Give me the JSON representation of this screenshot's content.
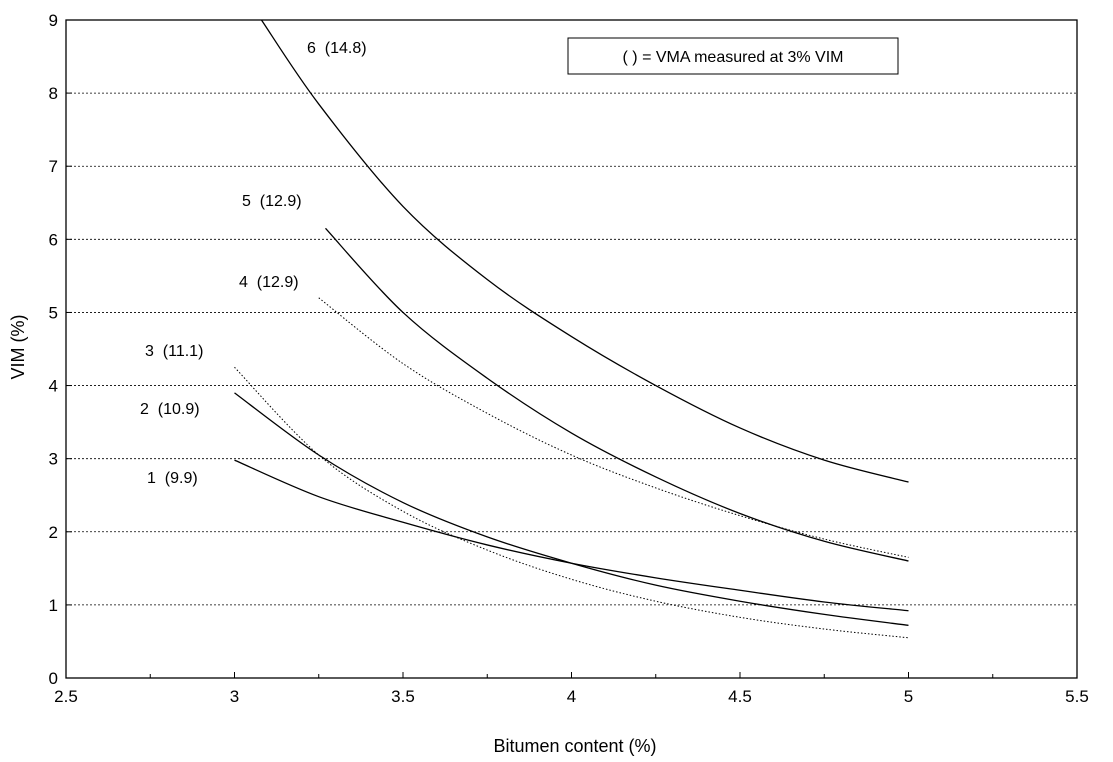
{
  "chart_data": {
    "type": "line",
    "xlabel": "Bitumen content (%)",
    "ylabel": "VIM (%)",
    "xlim": [
      2.5,
      5.5
    ],
    "ylim": [
      0,
      9
    ],
    "xticks": [
      "2.5",
      "3",
      "3.5",
      "4",
      "4.5",
      "5",
      "5.5"
    ],
    "yticks": [
      "0",
      "1",
      "2",
      "3",
      "4",
      "5",
      "6",
      "7",
      "8",
      "9"
    ],
    "grid": "horizontal dashed",
    "annotation": "( ) = VMA measured at 3% VIM",
    "series": [
      {
        "name": "1",
        "label": "1  (9.9)",
        "style": "solid",
        "x": [
          3.0,
          3.25,
          3.5,
          3.75,
          4.0,
          4.25,
          4.5,
          4.75,
          5.0
        ],
        "y": [
          2.98,
          2.48,
          2.13,
          1.82,
          1.57,
          1.37,
          1.2,
          1.04,
          0.92
        ]
      },
      {
        "name": "2",
        "label": "2  (10.9)",
        "style": "solid",
        "x": [
          3.0,
          3.25,
          3.5,
          3.75,
          4.0,
          4.25,
          4.5,
          4.75,
          5.0
        ],
        "y": [
          3.9,
          3.05,
          2.4,
          1.93,
          1.57,
          1.27,
          1.05,
          0.87,
          0.72
        ]
      },
      {
        "name": "3",
        "label": "3  (11.1)",
        "style": "dotted",
        "x": [
          3.0,
          3.25,
          3.5,
          3.75,
          4.0,
          4.25,
          4.5,
          4.75,
          5.0
        ],
        "y": [
          4.25,
          3.05,
          2.28,
          1.75,
          1.35,
          1.05,
          0.83,
          0.67,
          0.55
        ]
      },
      {
        "name": "4",
        "label": "4  (12.9)",
        "style": "dotted",
        "x": [
          3.25,
          3.5,
          3.75,
          4.0,
          4.25,
          4.5,
          4.75,
          5.0
        ],
        "y": [
          5.2,
          4.3,
          3.62,
          3.05,
          2.6,
          2.22,
          1.9,
          1.65
        ]
      },
      {
        "name": "5",
        "label": "5  (12.9)",
        "style": "solid",
        "x": [
          3.27,
          3.5,
          3.75,
          4.0,
          4.25,
          4.5,
          4.75,
          5.0
        ],
        "y": [
          6.15,
          5.0,
          4.1,
          3.35,
          2.75,
          2.25,
          1.87,
          1.6
        ]
      },
      {
        "name": "6",
        "label": "6  (14.8)",
        "style": "solid",
        "x": [
          3.08,
          3.25,
          3.5,
          3.75,
          4.0,
          4.25,
          4.5,
          4.75,
          5.0
        ],
        "y": [
          9.0,
          7.85,
          6.45,
          5.45,
          4.67,
          4.0,
          3.42,
          2.98,
          2.68
        ]
      }
    ]
  }
}
